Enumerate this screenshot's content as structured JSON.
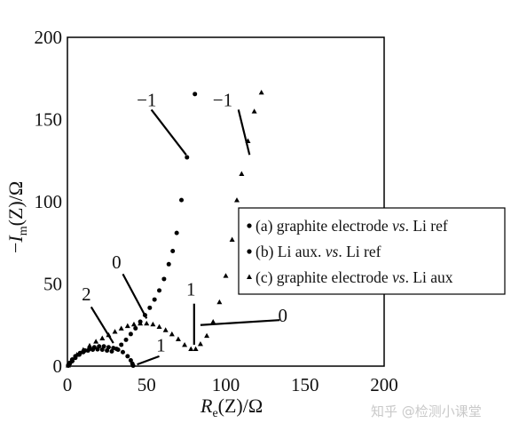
{
  "chart_data": {
    "type": "scatter",
    "title": "",
    "xlabel_parts": {
      "R": "R",
      "sub": "e",
      "rest": "(Z)/Ω"
    },
    "ylabel_parts": {
      "minus": "−",
      "I": "I",
      "sub": "m",
      "rest": "(Z)/Ω"
    },
    "xlim": [
      0,
      200
    ],
    "ylim": [
      0,
      200
    ],
    "xticks": [
      "0",
      "50",
      "100",
      "150",
      "200"
    ],
    "yticks": [
      "0",
      "50",
      "100",
      "150",
      "200"
    ],
    "grid": false,
    "legend_placement": "right",
    "series": [
      {
        "name": "(a) graphite electrode vs. Li ref",
        "name_parts": [
          "(a) graphite electrode ",
          "vs",
          ". Li ref"
        ],
        "marker": "circle",
        "x": [
          0.5,
          1.5,
          3,
          5,
          7.5,
          10,
          13,
          16,
          19,
          22,
          25,
          28,
          31,
          34,
          37,
          40,
          43,
          46,
          49,
          52,
          55,
          58,
          61,
          64,
          66.5,
          69,
          72,
          75.5,
          80.5
        ],
        "y": [
          0.3,
          1.5,
          3,
          5,
          7,
          8.5,
          9.5,
          10,
          10.2,
          10,
          9.5,
          9,
          10.5,
          13,
          16,
          19.5,
          23,
          27,
          31,
          35.5,
          40.5,
          46,
          53,
          62,
          70,
          81,
          101,
          127,
          165.5
        ]
      },
      {
        "name": "(b) Li aux. vs. Li ref",
        "name_parts": [
          "(b) Li aux. ",
          "vs",
          ". Li ref"
        ],
        "marker": "circle",
        "x": [
          0.5,
          1.5,
          3,
          5,
          8,
          11,
          14,
          17,
          20,
          23,
          26,
          29,
          32,
          35,
          38,
          40,
          41,
          41.5
        ],
        "y": [
          0.5,
          2,
          4,
          6,
          8,
          9.5,
          10.5,
          11.5,
          12,
          12,
          11.5,
          11,
          10,
          8.5,
          6,
          3.5,
          1.5,
          0.3
        ]
      },
      {
        "name": "(c) graphite electrode vs. Li aux",
        "name_parts": [
          "(c) graphite electrode ",
          "vs",
          ". Li aux"
        ],
        "marker": "triangle",
        "x": [
          0.5,
          3,
          6,
          10,
          14,
          18,
          22,
          26,
          30,
          34,
          38,
          42,
          46,
          50,
          54,
          58,
          62,
          66,
          70,
          74,
          78,
          81,
          84,
          88,
          92,
          96,
          100,
          104,
          107,
          110,
          114,
          118,
          122.5
        ],
        "y": [
          0.5,
          4,
          7,
          10,
          12.5,
          15,
          17,
          19,
          21,
          23,
          24.5,
          25.5,
          26,
          26,
          25.5,
          24,
          22,
          19.5,
          16.5,
          13,
          10.5,
          10.5,
          13.5,
          18.5,
          27,
          39,
          55,
          77,
          101,
          117,
          137,
          155,
          166.5
        ]
      }
    ],
    "annotations": [
      {
        "label": "−1",
        "text_x": 50,
        "text_y": 158,
        "line": [
          [
            53,
            156
          ],
          [
            75,
            128.5
          ]
        ]
      },
      {
        "label": "−1",
        "text_x": 98,
        "text_y": 158,
        "line": [
          [
            108,
            156
          ],
          [
            115,
            128.5
          ]
        ]
      },
      {
        "label": "0",
        "text_x": 31,
        "text_y": 59.5,
        "line": [
          [
            35,
            56
          ],
          [
            50,
            29
          ]
        ]
      },
      {
        "label": "2",
        "text_x": 12,
        "text_y": 40,
        "line": [
          [
            15,
            36
          ],
          [
            29,
            14
          ]
        ]
      },
      {
        "label": "1",
        "text_x": 78,
        "text_y": 43,
        "line": [
          [
            80,
            38
          ],
          [
            80,
            13
          ]
        ]
      },
      {
        "label": "0",
        "text_x": 136,
        "text_y": 27,
        "line": [
          [
            134,
            28
          ],
          [
            84,
            25
          ]
        ]
      },
      {
        "label": "1",
        "text_x": 59,
        "text_y": 9,
        "line": [
          [
            58,
            6
          ],
          [
            44,
            1
          ]
        ]
      }
    ]
  },
  "watermark": "知乎 @检测小课堂"
}
